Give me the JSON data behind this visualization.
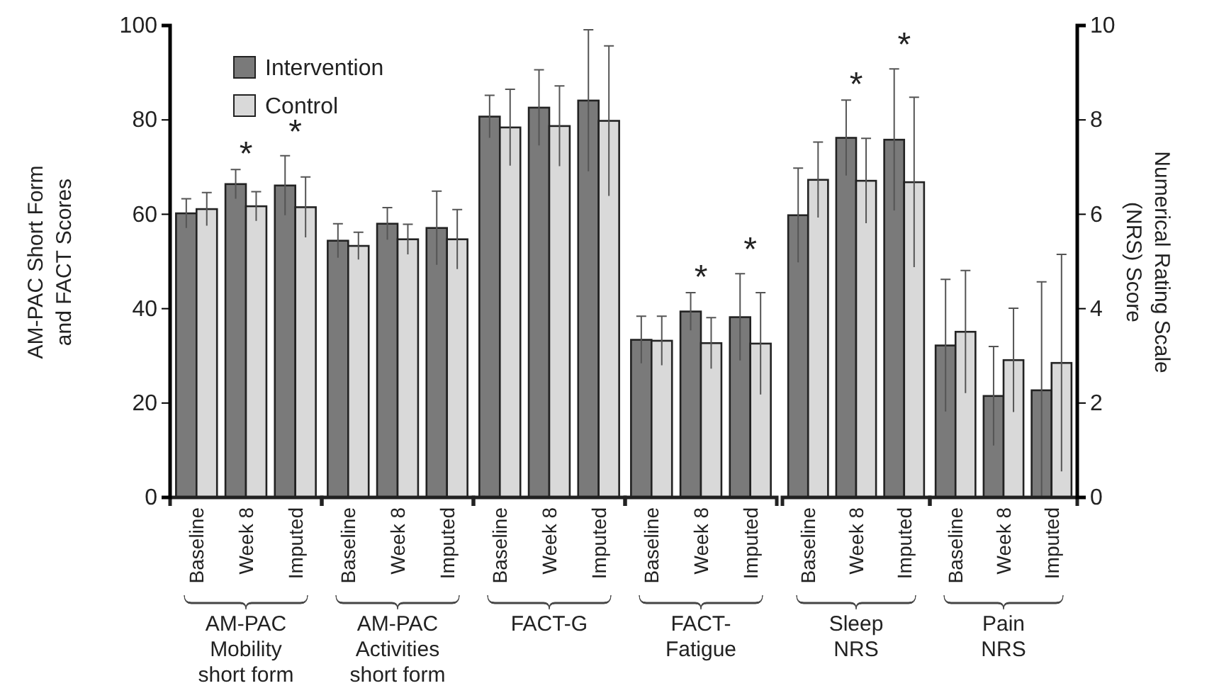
{
  "chart_data": [
    {
      "type": "bar",
      "xlabel": "AM-PAC\nMobility\nshort form",
      "ylabel": "AM-PAC Short Form\nand FACT Scores",
      "categories": [
        "Baseline",
        "Week 8",
        "Imputed"
      ],
      "ylim": [
        0,
        100
      ],
      "yticks": [
        0,
        20,
        40,
        60,
        80,
        100
      ],
      "legend": "top right",
      "series": [
        {
          "name": "Intervention",
          "color": "#7a7a7a",
          "values": [
            60.2,
            66.4,
            66.1
          ],
          "errors": [
            3.1,
            3.1,
            6.3
          ]
        },
        {
          "name": "Control",
          "color": "#d9d9d9",
          "values": [
            61.1,
            61.7,
            61.5
          ],
          "errors": [
            3.5,
            3.1,
            6.4
          ]
        }
      ],
      "annotations": [
        "*",
        "*"
      ]
    },
    {
      "type": "bar",
      "xlabel": "AM-PAC\nActivities\nshort form",
      "categories": [
        "Baseline",
        "Week 8",
        "Imputed"
      ],
      "ylim": [
        0,
        100
      ],
      "tick_labels": "x",
      "series": [
        {
          "color": "#7a7a7a",
          "values": [
            54.4,
            58.0,
            57.1
          ],
          "errors": [
            3.6,
            3.4,
            7.8
          ]
        },
        {
          "color": "#d9d9d9",
          "values": [
            53.3,
            54.7,
            54.7
          ],
          "errors": [
            2.9,
            3.2,
            6.3
          ]
        }
      ]
    },
    {
      "type": "bar",
      "xlabel": "FACT-G",
      "categories": [
        "Baseline",
        "Week 8",
        "Imputed"
      ],
      "ylim": [
        0,
        100
      ],
      "tick_labels": "x",
      "series": [
        {
          "color": "#7a7a7a",
          "values": [
            80.7,
            82.6,
            84.1
          ],
          "errors": [
            4.5,
            8.0,
            15.0
          ]
        },
        {
          "color": "#d9d9d9",
          "values": [
            78.4,
            78.7,
            79.8
          ],
          "errors": [
            8.1,
            8.5,
            15.9
          ]
        }
      ]
    },
    {
      "type": "bar",
      "xlabel": "FACT-\nFatigue",
      "categories": [
        "Baseline",
        "Week 8",
        "Imputed"
      ],
      "ylim": [
        0,
        100
      ],
      "tick_labels": "x",
      "series": [
        {
          "color": "#7a7a7a",
          "values": [
            33.4,
            39.4,
            38.2
          ],
          "errors": [
            5.0,
            4.0,
            9.2
          ]
        },
        {
          "color": "#d9d9d9",
          "values": [
            33.2,
            32.7,
            32.6
          ],
          "errors": [
            5.2,
            5.4,
            10.8
          ]
        }
      ],
      "annotations": [
        "*",
        "*"
      ]
    },
    {
      "type": "bar",
      "xlabel": "Sleep\nNRS",
      "categories": [
        "Baseline",
        "Week 8",
        "Imputed"
      ],
      "y2lim": [
        0,
        10
      ],
      "tick_labels": "x",
      "series": [
        {
          "color": "#7a7a7a",
          "axis": "y2",
          "values": [
            5.98,
            7.62,
            7.58
          ],
          "errors": [
            1.0,
            0.8,
            1.5
          ]
        },
        {
          "color": "#d9d9d9",
          "axis": "y2",
          "values": [
            6.73,
            6.71,
            6.68
          ],
          "errors": [
            0.8,
            0.9,
            1.8
          ]
        }
      ],
      "annotations": [
        "*",
        "*"
      ]
    },
    {
      "type": "bar",
      "xlabel": "Pain\nNRS",
      "y2label": "Numerical Rating Scale\n(NRS) Score",
      "categories": [
        "Baseline",
        "Week 8",
        "Imputed"
      ],
      "y2lim": [
        0,
        10
      ],
      "y2ticks": [
        0,
        2,
        4,
        6,
        8,
        10
      ],
      "series": [
        {
          "color": "#7a7a7a",
          "axis": "y2",
          "values": [
            3.22,
            2.15,
            2.27
          ],
          "errors": [
            1.4,
            1.05,
            2.3
          ]
        },
        {
          "color": "#d9d9d9",
          "axis": "y2",
          "values": [
            3.51,
            2.91,
            2.85
          ],
          "errors": [
            1.3,
            1.1,
            2.3
          ]
        }
      ]
    }
  ]
}
